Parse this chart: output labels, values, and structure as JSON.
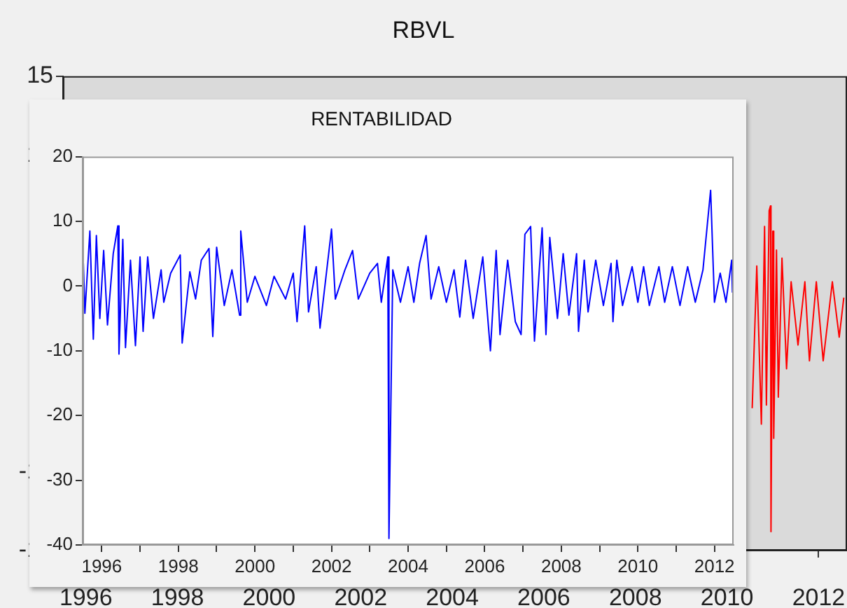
{
  "chart_data": [
    {
      "type": "line",
      "title": "RBVL",
      "xlim": [
        1995.5,
        2012.62
      ],
      "xticks": [
        1996,
        1998,
        2000,
        2002,
        2004,
        2006,
        2008,
        2010,
        2012
      ],
      "ylim": [
        -15,
        15
      ],
      "yticks": [
        -15,
        -10,
        10,
        15
      ],
      "grid": false,
      "series": [
        {
          "color": "#ff0000",
          "x": [
            2010.55,
            2010.65,
            2010.75,
            2010.82,
            2010.86,
            2010.92,
            2010.95,
            2010.96,
            2011.0,
            2011.02,
            2011.08,
            2011.12,
            2011.2,
            2011.3,
            2011.4,
            2011.55,
            2011.7,
            2011.8,
            2011.95,
            2012.1,
            2012.3,
            2012.45,
            2012.55
          ],
          "values": [
            -6,
            3,
            -7,
            5.5,
            -5.8,
            6.5,
            6.8,
            -13.8,
            5.2,
            -7.9,
            4,
            -5.3,
            3.5,
            -3.5,
            2,
            -2,
            2,
            -3,
            2,
            -3,
            2,
            -1.5,
            1
          ]
        }
      ]
    },
    {
      "type": "line",
      "title": "RENTABILIDAD",
      "xlim": [
        1995.5,
        2012.5
      ],
      "xticks": [
        1996,
        {
          "value": 1997,
          "label": null
        },
        1998,
        {
          "value": 1999,
          "label": null
        },
        2000,
        {
          "value": 2001,
          "label": null
        },
        2002,
        {
          "value": 2003,
          "label": null
        },
        2004,
        {
          "value": 2005,
          "label": null
        },
        2006,
        {
          "value": 2007,
          "label": null
        },
        2008,
        {
          "value": 2009,
          "label": null
        },
        2010,
        {
          "value": 2011,
          "label": null
        },
        2012
      ],
      "ylim": [
        -40,
        20
      ],
      "yticks": [
        -40,
        -30,
        -20,
        -10,
        0,
        10,
        20
      ],
      "grid": false,
      "series": [
        {
          "color": "#0000ff",
          "x": [
            1995.52,
            1995.56,
            1995.69,
            1995.78,
            1995.86,
            1995.95,
            1996.05,
            1996.15,
            1996.3,
            1996.42,
            1996.45,
            1996.55,
            1996.62,
            1996.75,
            1996.88,
            1997.0,
            1997.08,
            1997.2,
            1997.35,
            1997.55,
            1997.62,
            1997.8,
            1998.05,
            1998.1,
            1998.3,
            1998.45,
            1998.6,
            1998.8,
            1998.9,
            1999.0,
            1999.2,
            1999.4,
            1999.6,
            1999.63,
            1999.8,
            2000.0,
            2000.3,
            2000.5,
            2000.8,
            2001.0,
            2001.1,
            2001.3,
            2001.4,
            2001.6,
            2001.7,
            2002.0,
            2002.1,
            2002.35,
            2002.55,
            2002.7,
            2003.0,
            2003.2,
            2003.3,
            2003.47,
            2003.5,
            2003.6,
            2003.8,
            2004.0,
            2004.15,
            2004.3,
            2004.47,
            2004.6,
            2004.8,
            2005.0,
            2005.2,
            2005.35,
            2005.5,
            2005.7,
            2005.95,
            2006.15,
            2006.3,
            2006.4,
            2006.6,
            2006.8,
            2006.95,
            2007.05,
            2007.2,
            2007.3,
            2007.5,
            2007.6,
            2007.7,
            2007.9,
            2008.05,
            2008.2,
            2008.4,
            2008.45,
            2008.6,
            2008.7,
            2008.9,
            2009.1,
            2009.3,
            2009.35,
            2009.45,
            2009.6,
            2009.85,
            2010.0,
            2010.15,
            2010.3,
            2010.55,
            2010.7,
            2010.9,
            2011.1,
            2011.3,
            2011.5,
            2011.7,
            2011.9,
            2012.0,
            2012.15,
            2012.3,
            2012.45,
            2012.47
          ],
          "values": [
            3.5,
            -4.2,
            8.5,
            -8.2,
            7.8,
            -5,
            5.5,
            -6,
            5,
            9.3,
            -10.5,
            7.2,
            -9.5,
            4,
            -9.2,
            4.5,
            -7,
            4.5,
            -5,
            2.5,
            -2.5,
            2,
            4.8,
            -8.8,
            2.2,
            -2,
            4,
            5.8,
            -7.8,
            6,
            -3,
            2.5,
            -4.5,
            8.5,
            -2.5,
            1.5,
            -3,
            1.5,
            -2,
            2,
            -5.5,
            9.3,
            -4,
            3,
            -6.5,
            8.8,
            -2,
            2.5,
            5.5,
            -2,
            2,
            3.5,
            -2.5,
            4.5,
            -39,
            2.5,
            -2.5,
            3,
            -2.5,
            3.5,
            7.8,
            -2,
            3,
            -2.5,
            2.5,
            -4.8,
            4,
            -5,
            4.5,
            -10,
            5.5,
            -7.5,
            4,
            -5.5,
            -7.5,
            8,
            9.2,
            -8.5,
            9,
            -7.5,
            7.5,
            -5,
            5,
            -4.5,
            5,
            -7,
            4,
            -4,
            4,
            -3,
            3.5,
            -5.5,
            4,
            -3,
            3,
            -2.5,
            3,
            -3,
            3,
            -2.5,
            3,
            -3,
            3,
            -2.5,
            2.5,
            14.8,
            -2.5,
            2,
            -2.5,
            4,
            -1
          ]
        }
      ]
    }
  ]
}
